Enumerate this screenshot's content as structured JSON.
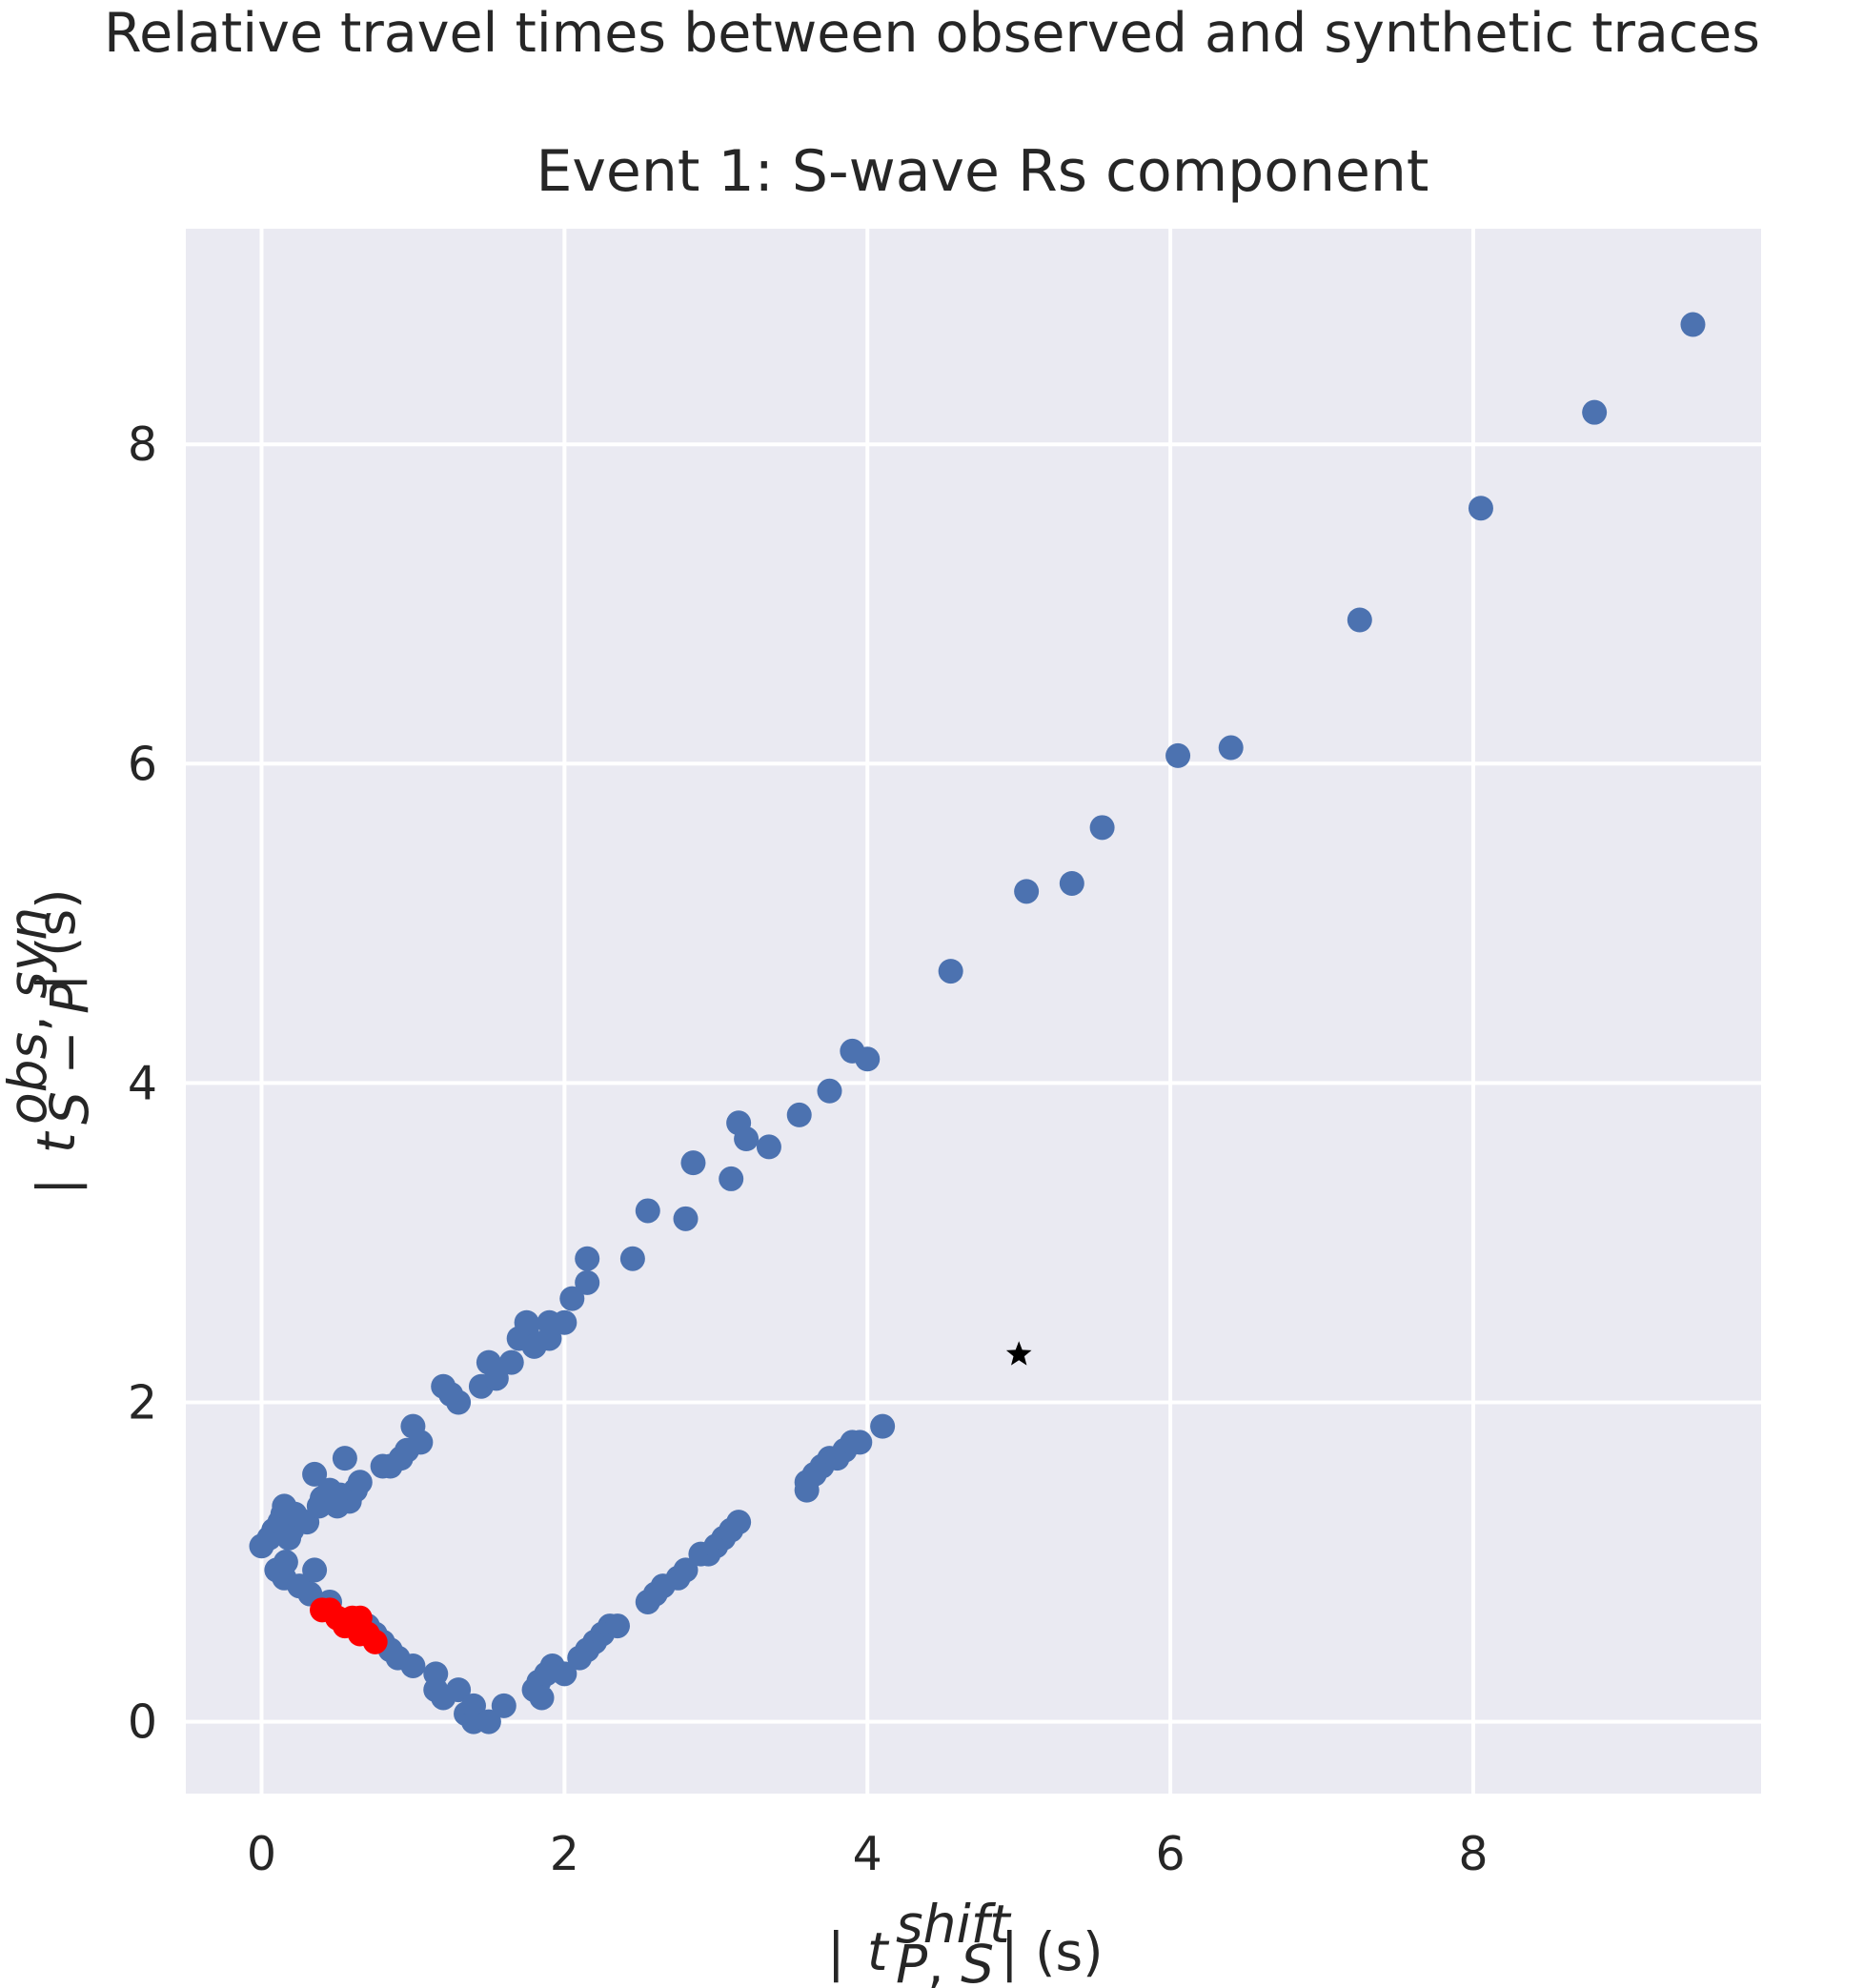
{
  "suptitle": "Relative travel times between observed and synthetic traces",
  "chart_data": {
    "type": "scatter",
    "title": "Event 1: S-wave Rs component",
    "xlabel": "| t_{P,S}^{shift} | (s)",
    "ylabel": "| t_{S-P}^{obs,syn} | (s)",
    "xlim": [
      -0.5,
      9.9
    ],
    "ylim": [
      -0.45,
      9.35
    ],
    "xticks": [
      0,
      2,
      4,
      6,
      8
    ],
    "yticks": [
      0,
      2,
      4,
      6,
      8
    ],
    "grid": true,
    "background": "#eaeaf2",
    "series": [
      {
        "marker": "circle",
        "color": "#4c72b0",
        "points": [
          [
            0.0,
            1.1
          ],
          [
            0.05,
            1.15
          ],
          [
            0.08,
            1.2
          ],
          [
            0.1,
            0.95
          ],
          [
            0.12,
            1.25
          ],
          [
            0.14,
            1.3
          ],
          [
            0.15,
            1.35
          ],
          [
            0.15,
            0.9
          ],
          [
            0.16,
            1.0
          ],
          [
            0.18,
            1.15
          ],
          [
            0.2,
            1.2
          ],
          [
            0.22,
            1.3
          ],
          [
            0.25,
            0.85
          ],
          [
            0.3,
            1.25
          ],
          [
            0.32,
            0.8
          ],
          [
            0.35,
            1.55
          ],
          [
            0.35,
            0.95
          ],
          [
            0.38,
            1.35
          ],
          [
            0.4,
            1.4
          ],
          [
            0.45,
            1.45
          ],
          [
            0.45,
            0.75
          ],
          [
            0.5,
            1.35
          ],
          [
            0.52,
            1.42
          ],
          [
            0.55,
            1.65
          ],
          [
            0.58,
            1.38
          ],
          [
            0.62,
            1.45
          ],
          [
            0.65,
            1.5
          ],
          [
            0.7,
            0.6
          ],
          [
            0.75,
            0.55
          ],
          [
            0.8,
            0.5
          ],
          [
            0.85,
            0.45
          ],
          [
            0.9,
            0.4
          ],
          [
            0.8,
            1.6
          ],
          [
            0.85,
            1.6
          ],
          [
            0.92,
            1.65
          ],
          [
            0.96,
            1.7
          ],
          [
            1.0,
            1.85
          ],
          [
            1.0,
            0.35
          ],
          [
            1.05,
            1.75
          ],
          [
            1.15,
            0.3
          ],
          [
            1.15,
            0.2
          ],
          [
            1.2,
            0.15
          ],
          [
            1.2,
            2.1
          ],
          [
            1.25,
            2.05
          ],
          [
            1.3,
            0.2
          ],
          [
            1.3,
            2.0
          ],
          [
            1.35,
            0.05
          ],
          [
            1.4,
            0.0
          ],
          [
            1.4,
            0.1
          ],
          [
            1.45,
            2.1
          ],
          [
            1.5,
            0.0
          ],
          [
            1.5,
            2.25
          ],
          [
            1.55,
            2.15
          ],
          [
            1.6,
            0.1
          ],
          [
            1.65,
            2.25
          ],
          [
            1.7,
            2.4
          ],
          [
            1.75,
            2.45
          ],
          [
            1.75,
            2.5
          ],
          [
            1.8,
            0.2
          ],
          [
            1.8,
            2.35
          ],
          [
            1.83,
            0.25
          ],
          [
            1.85,
            0.15
          ],
          [
            1.88,
            0.3
          ],
          [
            1.9,
            2.4
          ],
          [
            1.9,
            2.5
          ],
          [
            1.92,
            0.35
          ],
          [
            2.0,
            2.5
          ],
          [
            2.0,
            0.3
          ],
          [
            2.05,
            2.65
          ],
          [
            2.1,
            0.4
          ],
          [
            2.15,
            0.45
          ],
          [
            2.15,
            2.75
          ],
          [
            2.15,
            2.9
          ],
          [
            2.2,
            0.5
          ],
          [
            2.25,
            0.55
          ],
          [
            2.3,
            0.6
          ],
          [
            2.35,
            0.6
          ],
          [
            2.45,
            2.9
          ],
          [
            2.55,
            3.2
          ],
          [
            2.55,
            0.75
          ],
          [
            2.6,
            0.8
          ],
          [
            2.65,
            0.85
          ],
          [
            2.75,
            0.9
          ],
          [
            2.8,
            0.95
          ],
          [
            2.8,
            3.15
          ],
          [
            2.85,
            3.5
          ],
          [
            2.9,
            1.05
          ],
          [
            2.95,
            1.05
          ],
          [
            3.0,
            1.1
          ],
          [
            3.05,
            1.15
          ],
          [
            3.1,
            1.2
          ],
          [
            3.1,
            3.4
          ],
          [
            3.15,
            1.25
          ],
          [
            3.15,
            3.75
          ],
          [
            3.2,
            3.65
          ],
          [
            3.35,
            3.6
          ],
          [
            3.55,
            3.8
          ],
          [
            3.6,
            1.45
          ],
          [
            3.6,
            1.5
          ],
          [
            3.65,
            1.55
          ],
          [
            3.7,
            1.6
          ],
          [
            3.75,
            1.65
          ],
          [
            3.75,
            3.95
          ],
          [
            3.8,
            1.65
          ],
          [
            3.85,
            1.7
          ],
          [
            3.9,
            1.75
          ],
          [
            3.9,
            4.2
          ],
          [
            3.95,
            1.75
          ],
          [
            4.0,
            4.15
          ],
          [
            4.1,
            1.85
          ],
          [
            4.55,
            4.7
          ],
          [
            5.05,
            5.2
          ],
          [
            5.35,
            5.25
          ],
          [
            5.55,
            5.6
          ],
          [
            6.05,
            6.05
          ],
          [
            6.4,
            6.1
          ],
          [
            7.25,
            6.9
          ],
          [
            8.05,
            7.6
          ],
          [
            8.8,
            8.2
          ],
          [
            9.45,
            8.75
          ]
        ]
      },
      {
        "marker": "circle",
        "color": "#ff0000",
        "points": [
          [
            0.4,
            0.7
          ],
          [
            0.45,
            0.7
          ],
          [
            0.5,
            0.65
          ],
          [
            0.55,
            0.6
          ],
          [
            0.6,
            0.65
          ],
          [
            0.65,
            0.55
          ],
          [
            0.65,
            0.65
          ],
          [
            0.7,
            0.55
          ],
          [
            0.75,
            0.5
          ]
        ]
      },
      {
        "marker": "star",
        "color": "#000000",
        "points": [
          [
            5.0,
            2.3
          ]
        ]
      }
    ]
  }
}
